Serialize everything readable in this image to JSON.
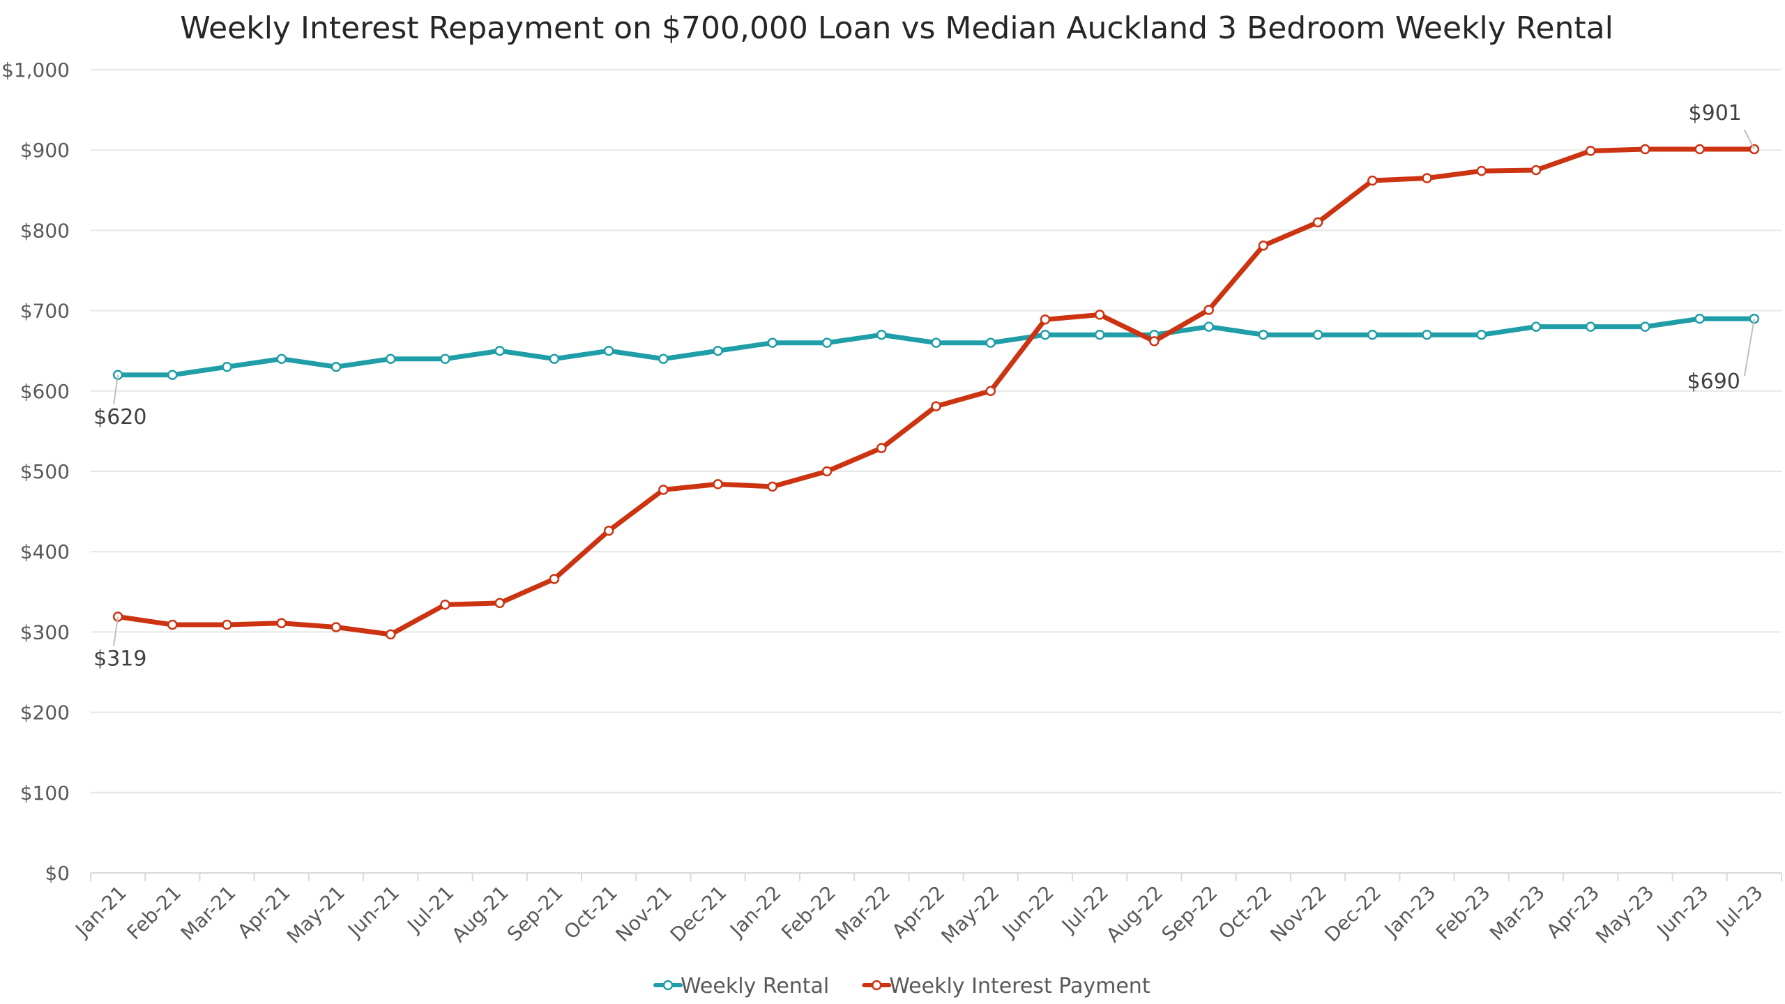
{
  "chart_data": {
    "type": "line",
    "title": "Weekly Interest Repayment on $700,000 Loan vs Median Auckland 3 Bedroom Weekly Rental",
    "xlabel": "",
    "ylabel": "",
    "ylim": [
      0,
      1000
    ],
    "ytick_step": 100,
    "ytick_labels": [
      "$0",
      "$100",
      "$200",
      "$300",
      "$400",
      "$500",
      "$600",
      "$700",
      "$800",
      "$900",
      "$1,000"
    ],
    "grid": true,
    "legend_position": "bottom",
    "categories": [
      "Jan-21",
      "Feb-21",
      "Mar-21",
      "Apr-21",
      "May-21",
      "Jun-21",
      "Jul-21",
      "Aug-21",
      "Sep-21",
      "Oct-21",
      "Nov-21",
      "Dec-21",
      "Jan-22",
      "Feb-22",
      "Mar-22",
      "Apr-22",
      "May-22",
      "Jun-22",
      "Jul-22",
      "Aug-22",
      "Sep-22",
      "Oct-22",
      "Nov-22",
      "Dec-22",
      "Jan-23",
      "Feb-23",
      "Mar-23",
      "Apr-23",
      "May-23",
      "Jun-23",
      "Jul-23"
    ],
    "series": [
      {
        "name": "Weekly Rental",
        "color": "#1f9ea8",
        "values": [
          620,
          620,
          630,
          640,
          630,
          640,
          640,
          650,
          640,
          650,
          640,
          650,
          660,
          660,
          670,
          660,
          660,
          670,
          670,
          670,
          680,
          670,
          670,
          670,
          670,
          670,
          680,
          680,
          680,
          690,
          690
        ],
        "labels": [
          {
            "index": 0,
            "text": "$620",
            "position": "below"
          },
          {
            "index": 30,
            "text": "$690",
            "position": "below-left"
          }
        ]
      },
      {
        "name": "Weekly Interest Payment",
        "color": "#cc3311",
        "values": [
          319,
          309,
          309,
          311,
          306,
          297,
          334,
          336,
          366,
          426,
          477,
          484,
          481,
          500,
          529,
          581,
          600,
          689,
          695,
          662,
          701,
          781,
          810,
          862,
          865,
          874,
          875,
          899,
          901,
          901,
          901
        ],
        "labels": [
          {
            "index": 0,
            "text": "$319",
            "position": "below"
          },
          {
            "index": 30,
            "text": "$901",
            "position": "above-left"
          }
        ]
      }
    ]
  }
}
